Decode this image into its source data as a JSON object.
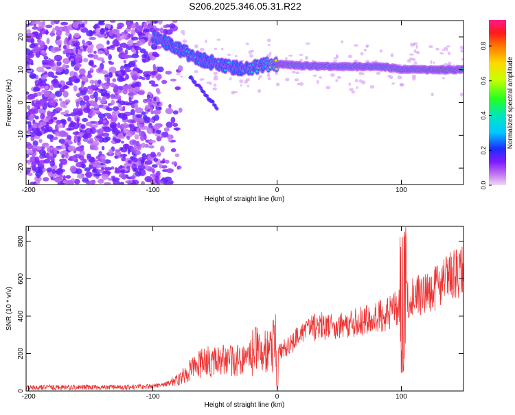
{
  "title": "S206.2025.346.05.31.R22",
  "chart_data": [
    {
      "type": "heatmap",
      "xlabel": "Height of straight line (km)",
      "ylabel": "Frequency (Hz)",
      "xlim": [
        -202,
        150
      ],
      "ylim": [
        -25,
        25
      ],
      "xticks": [
        -200,
        -100,
        0,
        100
      ],
      "yticks": [
        -20,
        -10,
        0,
        10,
        20
      ],
      "colorbar": {
        "label": "Normalized spectral amplitude",
        "range": [
          0,
          0.95
        ],
        "ticks": [
          0.0,
          0.2,
          0.4,
          0.6,
          0.8
        ],
        "colormap": "rainbow: magenta-violet-blue-cyan-green-yellow-orange-red-pink"
      },
      "ridge": {
        "x": [
          -100,
          -90,
          -80,
          -70,
          -60,
          -50,
          -40,
          -30,
          -20,
          -10,
          0,
          20,
          40,
          60,
          80,
          100,
          120,
          140,
          150
        ],
        "freq": [
          20,
          18.5,
          16.5,
          14.5,
          13,
          12,
          11,
          10.5,
          10.5,
          11.5,
          11.7,
          11.2,
          11,
          11,
          11,
          10.2,
          10,
          10,
          10
        ],
        "amplitude": [
          0.3,
          0.35,
          0.35,
          0.35,
          0.3,
          0.3,
          0.35,
          0.4,
          0.5,
          0.55,
          0.85,
          0.8,
          0.7,
          0.7,
          0.75,
          0.8,
          0.85,
          0.9,
          0.9
        ]
      }
    },
    {
      "type": "line",
      "xlabel": "Height of straight line (km)",
      "ylabel": "SNR (10 * v/v)",
      "xlim": [
        -202,
        150
      ],
      "ylim": [
        0,
        880
      ],
      "xticks": [
        -200,
        -100,
        0,
        100
      ],
      "yticks": [
        0,
        200,
        400,
        600,
        800
      ],
      "color": "#ee3333",
      "series": [
        {
          "x": [
            -202,
            -180,
            -160,
            -140,
            -120,
            -100,
            -90,
            -80,
            -70,
            -60,
            -50,
            -40,
            -30,
            -20,
            -10,
            0,
            10,
            20,
            30,
            40,
            50,
            60,
            70,
            80,
            90,
            100,
            110,
            120,
            130,
            140,
            150
          ],
          "y": [
            20,
            20,
            20,
            20,
            20,
            25,
            35,
            60,
            110,
            150,
            160,
            160,
            160,
            180,
            220,
            200,
            250,
            300,
            340,
            350,
            350,
            360,
            375,
            395,
            410,
            470,
            500,
            520,
            560,
            610,
            650
          ]
        }
      ]
    }
  ]
}
